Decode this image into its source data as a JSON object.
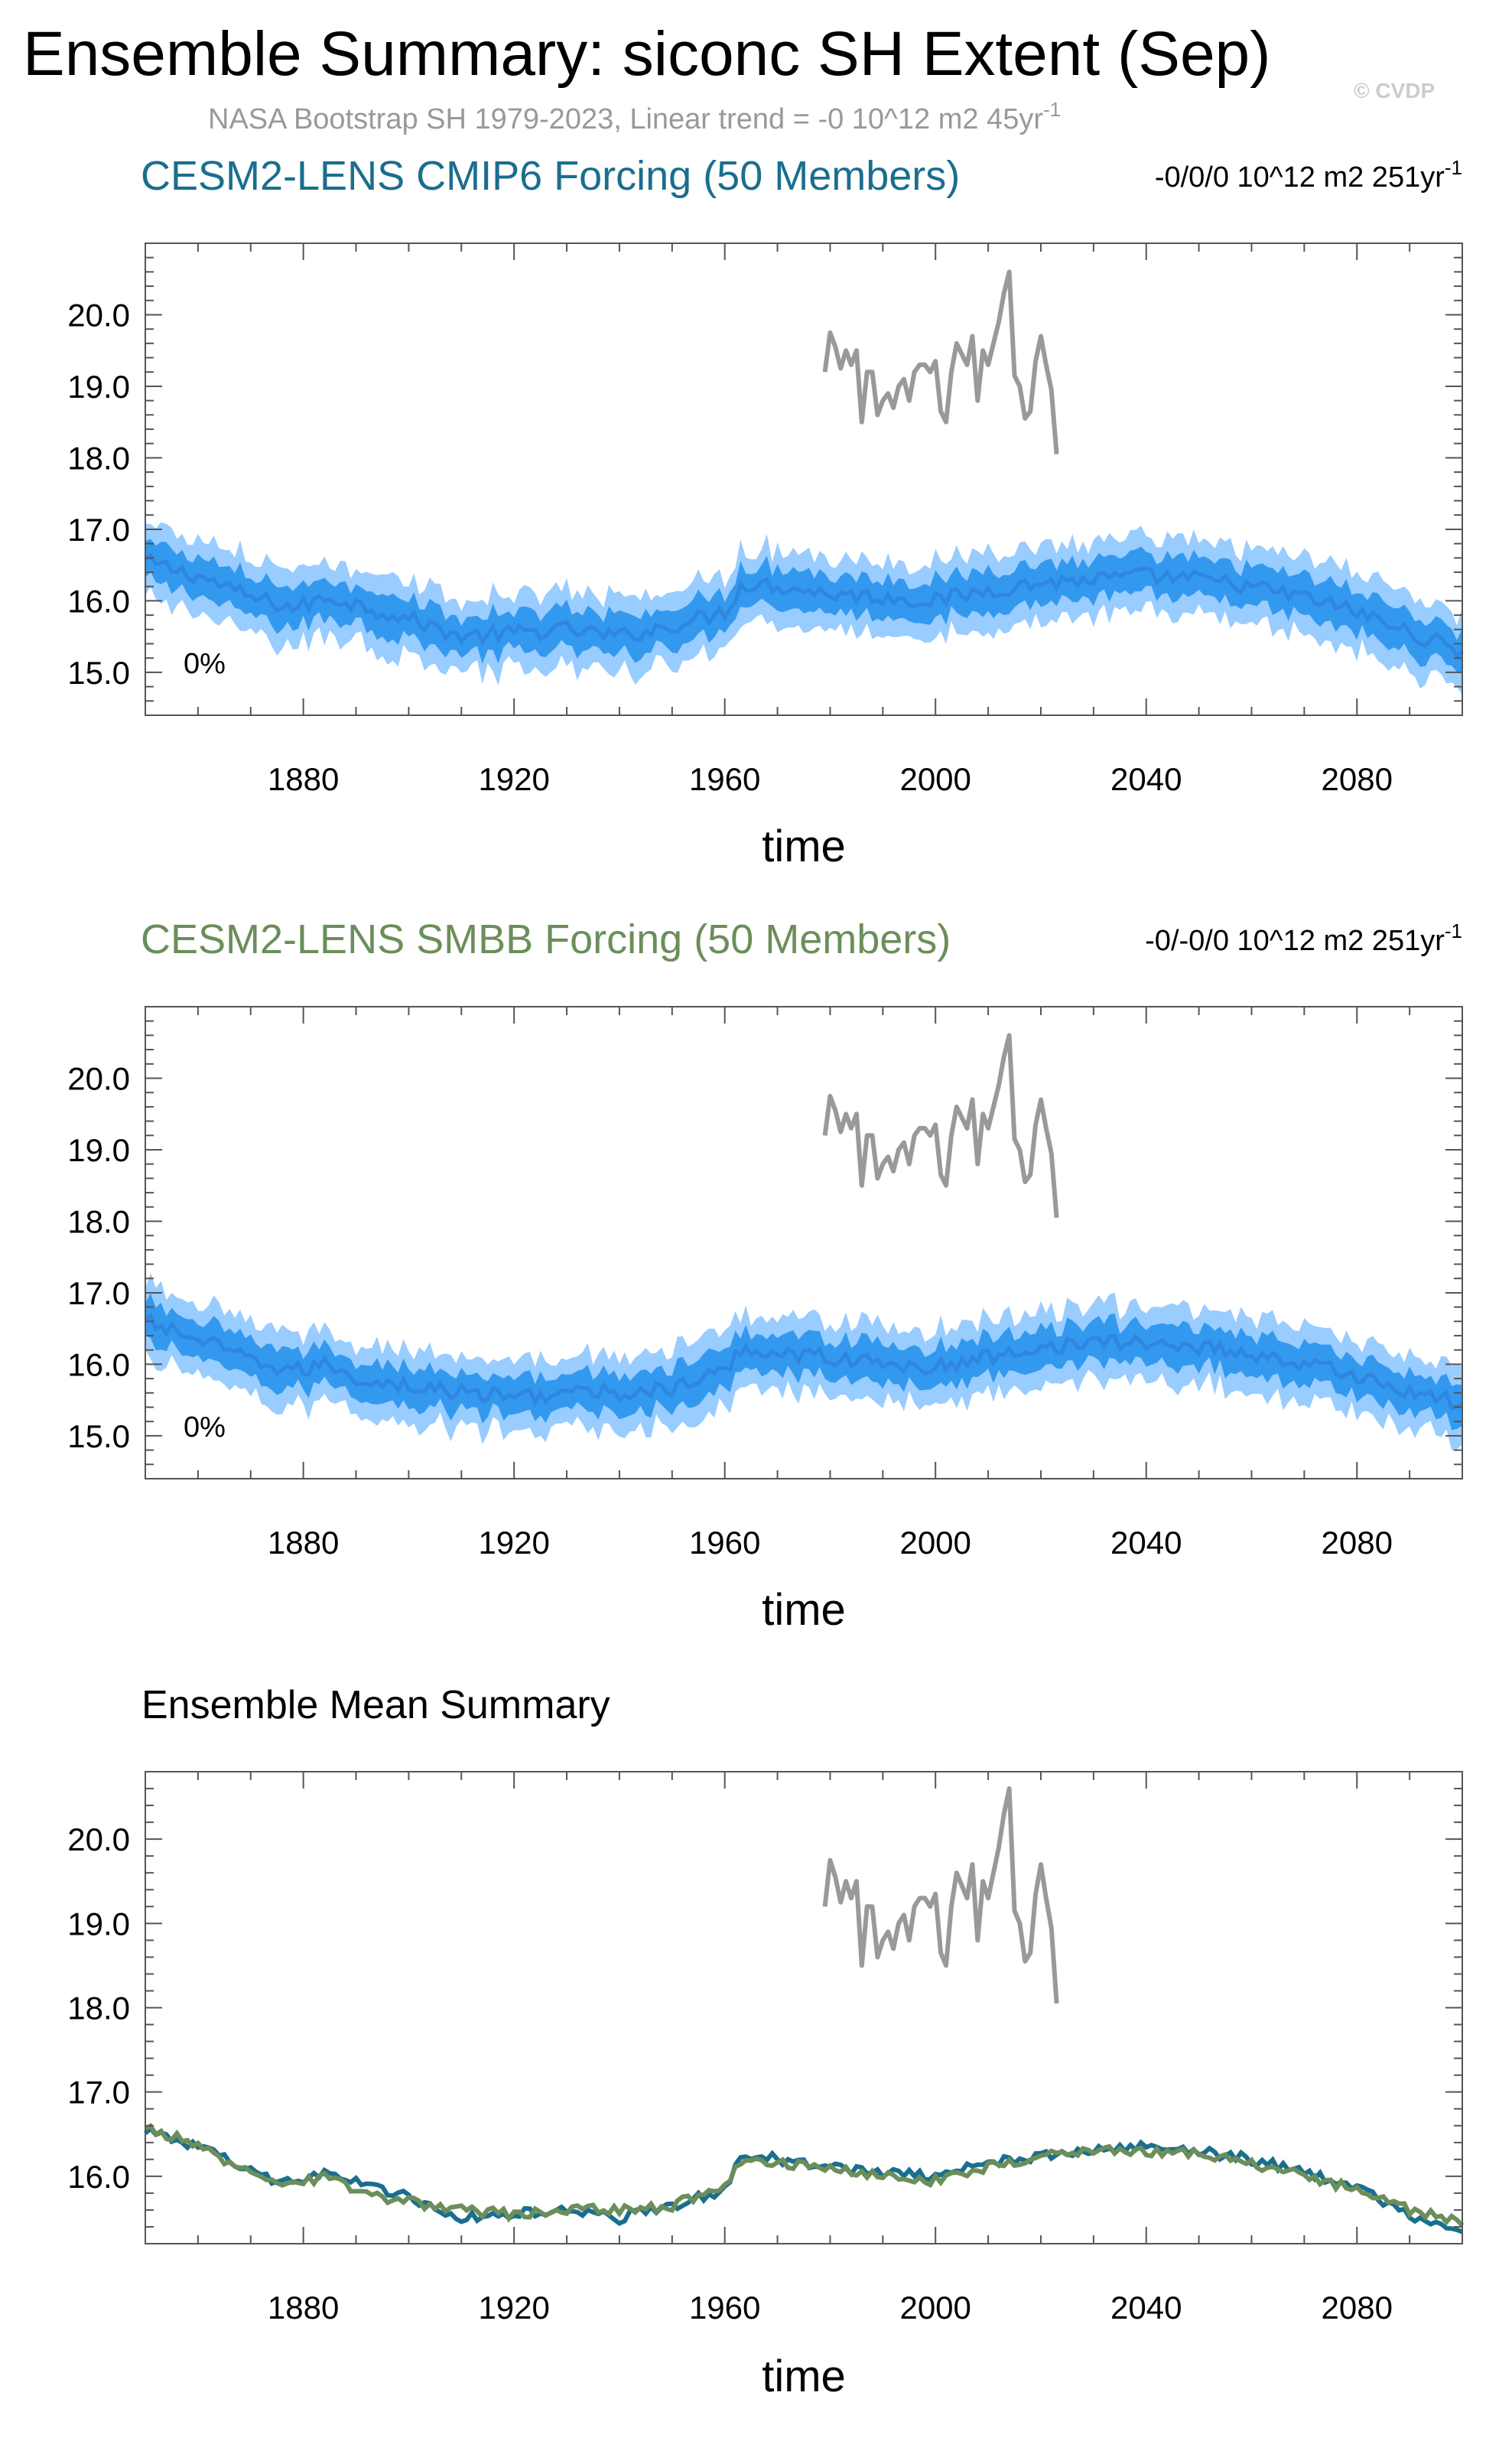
{
  "header": {
    "title": "Ensemble Summary: siconc SH Extent (Sep)",
    "subtitle_main": "NASA Bootstrap SH 1979-2023, Linear trend = -0 10^12 m2 45yr",
    "subtitle_sup": "-1",
    "watermark": "© CVDP"
  },
  "colors": {
    "obs": "#999999",
    "band_outer": "#99ccff",
    "band_inner": "#3399ee",
    "ens_mean": "#2f86e0",
    "cmip6": "#1a6e8e",
    "smbb": "#6b8e5a",
    "axis": "#555555"
  },
  "chart_data": [
    {
      "type": "line",
      "panel_title": "CESM2-LENS CMIP6 Forcing (50 Members)",
      "title_color": "#1a6e8e",
      "trend_text": "-0/0/0 10^12 m2 251yr",
      "trend_sup": "-1",
      "percent_label": "0%",
      "xlabel": "time",
      "xlim": [
        1850,
        2100
      ],
      "ylim": [
        14.4,
        21.0
      ],
      "xticks": [
        1880,
        1920,
        1960,
        2000,
        2040,
        2080
      ],
      "xtick_labels": [
        "1880",
        "1920",
        "1960",
        "2000",
        "2040",
        "2080"
      ],
      "yticks": [
        15.0,
        16.0,
        17.0,
        18.0,
        19.0,
        20.0
      ],
      "ytick_labels": [
        "15.0",
        "16.0",
        "17.0",
        "18.0",
        "19.0",
        "20.0"
      ],
      "mean_knots": [
        [
          1850,
          16.55
        ],
        [
          1860,
          16.35
        ],
        [
          1870,
          16.05
        ],
        [
          1878,
          15.9
        ],
        [
          1885,
          16.05
        ],
        [
          1890,
          15.95
        ],
        [
          1900,
          15.75
        ],
        [
          1910,
          15.5
        ],
        [
          1920,
          15.55
        ],
        [
          1930,
          15.6
        ],
        [
          1940,
          15.5
        ],
        [
          1950,
          15.65
        ],
        [
          1960,
          15.85
        ],
        [
          1963,
          16.2
        ],
        [
          1966,
          16.25
        ],
        [
          1980,
          16.1
        ],
        [
          1990,
          16.05
        ],
        [
          2000,
          16.0
        ],
        [
          2010,
          16.15
        ],
        [
          2020,
          16.25
        ],
        [
          2030,
          16.3
        ],
        [
          2040,
          16.35
        ],
        [
          2050,
          16.3
        ],
        [
          2060,
          16.2
        ],
        [
          2070,
          16.05
        ],
        [
          2080,
          15.85
        ],
        [
          2090,
          15.55
        ],
        [
          2100,
          15.3
        ]
      ],
      "inner_half_width": 0.27,
      "outer_half_width": 0.52,
      "has_band": true,
      "obs_series_name": "NASA Bootstrap SH",
      "obs_x": [
        1979,
        1980,
        1981,
        1982,
        1983,
        1984,
        1985,
        1986,
        1987,
        1988,
        1989,
        1990,
        1991,
        1992,
        1993,
        1994,
        1995,
        1996,
        1997,
        1998,
        1999,
        2000,
        2001,
        2002,
        2003,
        2004,
        2005,
        2006,
        2007,
        2008,
        2009,
        2010,
        2011,
        2012,
        2013,
        2014,
        2015,
        2016,
        2017,
        2018,
        2019,
        2020,
        2021,
        2022,
        2023
      ],
      "obs_y": [
        19.2,
        19.75,
        19.55,
        19.25,
        19.5,
        19.3,
        19.5,
        18.5,
        19.2,
        19.2,
        18.6,
        18.8,
        18.9,
        18.7,
        19.0,
        19.1,
        18.8,
        19.2,
        19.3,
        19.3,
        19.2,
        19.35,
        18.65,
        18.5,
        19.2,
        19.6,
        19.45,
        19.3,
        19.7,
        18.8,
        19.5,
        19.3,
        19.6,
        19.9,
        20.3,
        20.6,
        19.15,
        19.0,
        18.55,
        18.65,
        19.35,
        19.7,
        19.3,
        18.95,
        18.05
      ]
    },
    {
      "type": "line",
      "panel_title": "CESM2-LENS SMBB Forcing (50 Members)",
      "title_color": "#6b8e5a",
      "trend_text": "-0/-0/0 10^12 m2 251yr",
      "trend_sup": "-1",
      "percent_label": "0%",
      "xlabel": "time",
      "xlim": [
        1850,
        2100
      ],
      "ylim": [
        14.4,
        21.0
      ],
      "xticks": [
        1880,
        1920,
        1960,
        2000,
        2040,
        2080
      ],
      "xtick_labels": [
        "1880",
        "1920",
        "1960",
        "2000",
        "2040",
        "2080"
      ],
      "yticks": [
        15.0,
        16.0,
        17.0,
        18.0,
        19.0,
        20.0
      ],
      "ytick_labels": [
        "15.0",
        "16.0",
        "17.0",
        "18.0",
        "19.0",
        "20.0"
      ],
      "mean_knots": [
        [
          1850,
          16.6
        ],
        [
          1860,
          16.35
        ],
        [
          1870,
          16.05
        ],
        [
          1878,
          15.9
        ],
        [
          1885,
          16.0
        ],
        [
          1890,
          15.8
        ],
        [
          1900,
          15.7
        ],
        [
          1910,
          15.6
        ],
        [
          1920,
          15.55
        ],
        [
          1930,
          15.6
        ],
        [
          1940,
          15.6
        ],
        [
          1950,
          15.65
        ],
        [
          1960,
          15.9
        ],
        [
          1963,
          16.2
        ],
        [
          1966,
          16.2
        ],
        [
          1980,
          16.1
        ],
        [
          1990,
          16.0
        ],
        [
          2000,
          15.95
        ],
        [
          2010,
          16.1
        ],
        [
          2020,
          16.25
        ],
        [
          2030,
          16.3
        ],
        [
          2040,
          16.3
        ],
        [
          2050,
          16.25
        ],
        [
          2060,
          16.15
        ],
        [
          2070,
          16.0
        ],
        [
          2080,
          15.85
        ],
        [
          2090,
          15.6
        ],
        [
          2100,
          15.45
        ]
      ],
      "inner_half_width": 0.27,
      "outer_half_width": 0.52,
      "has_band": true,
      "obs_series_name": "NASA Bootstrap SH",
      "obs_x": [
        1979,
        1980,
        1981,
        1982,
        1983,
        1984,
        1985,
        1986,
        1987,
        1988,
        1989,
        1990,
        1991,
        1992,
        1993,
        1994,
        1995,
        1996,
        1997,
        1998,
        1999,
        2000,
        2001,
        2002,
        2003,
        2004,
        2005,
        2006,
        2007,
        2008,
        2009,
        2010,
        2011,
        2012,
        2013,
        2014,
        2015,
        2016,
        2017,
        2018,
        2019,
        2020,
        2021,
        2022,
        2023
      ],
      "obs_y": [
        19.2,
        19.75,
        19.55,
        19.25,
        19.5,
        19.3,
        19.5,
        18.5,
        19.2,
        19.2,
        18.6,
        18.8,
        18.9,
        18.7,
        19.0,
        19.1,
        18.8,
        19.2,
        19.3,
        19.3,
        19.2,
        19.35,
        18.65,
        18.5,
        19.2,
        19.6,
        19.45,
        19.3,
        19.7,
        18.8,
        19.5,
        19.3,
        19.6,
        19.9,
        20.3,
        20.6,
        19.15,
        19.0,
        18.55,
        18.65,
        19.35,
        19.7,
        19.3,
        18.95,
        18.05
      ]
    },
    {
      "type": "line",
      "panel_title": "Ensemble Mean Summary",
      "title_color": "#000000",
      "trend_text": "",
      "trend_sup": "",
      "percent_label": "",
      "xlabel": "time",
      "xlim": [
        1850,
        2100
      ],
      "ylim": [
        15.2,
        20.8
      ],
      "xticks": [
        1880,
        1920,
        1960,
        2000,
        2040,
        2080
      ],
      "xtick_labels": [
        "1880",
        "1920",
        "1960",
        "2000",
        "2040",
        "2080"
      ],
      "yticks": [
        16.0,
        17.0,
        18.0,
        19.0,
        20.0
      ],
      "ytick_labels": [
        "16.0",
        "17.0",
        "18.0",
        "19.0",
        "20.0"
      ],
      "has_band": false,
      "series": [
        {
          "name": "CESM2-LENS CMIP6 Forcing",
          "color": "#1a6e8e",
          "knots": [
            [
              1850,
              16.55
            ],
            [
              1860,
              16.35
            ],
            [
              1870,
              16.05
            ],
            [
              1878,
              15.9
            ],
            [
              1885,
              16.05
            ],
            [
              1890,
              15.95
            ],
            [
              1900,
              15.75
            ],
            [
              1910,
              15.5
            ],
            [
              1920,
              15.55
            ],
            [
              1930,
              15.6
            ],
            [
              1940,
              15.5
            ],
            [
              1950,
              15.65
            ],
            [
              1960,
              15.85
            ],
            [
              1963,
              16.2
            ],
            [
              1966,
              16.25
            ],
            [
              1980,
              16.1
            ],
            [
              1990,
              16.05
            ],
            [
              2000,
              16.0
            ],
            [
              2010,
              16.15
            ],
            [
              2020,
              16.25
            ],
            [
              2030,
              16.3
            ],
            [
              2040,
              16.35
            ],
            [
              2050,
              16.3
            ],
            [
              2060,
              16.2
            ],
            [
              2070,
              16.05
            ],
            [
              2080,
              15.85
            ],
            [
              2090,
              15.55
            ],
            [
              2100,
              15.3
            ]
          ]
        },
        {
          "name": "CESM2-LENS SMBB Forcing",
          "color": "#6b8e5a",
          "knots": [
            [
              1850,
              16.6
            ],
            [
              1860,
              16.35
            ],
            [
              1870,
              16.05
            ],
            [
              1878,
              15.9
            ],
            [
              1885,
              16.0
            ],
            [
              1890,
              15.8
            ],
            [
              1900,
              15.7
            ],
            [
              1910,
              15.6
            ],
            [
              1920,
              15.55
            ],
            [
              1930,
              15.6
            ],
            [
              1940,
              15.6
            ],
            [
              1950,
              15.65
            ],
            [
              1960,
              15.9
            ],
            [
              1963,
              16.2
            ],
            [
              1966,
              16.2
            ],
            [
              1980,
              16.1
            ],
            [
              1990,
              16.0
            ],
            [
              2000,
              15.95
            ],
            [
              2010,
              16.1
            ],
            [
              2020,
              16.25
            ],
            [
              2030,
              16.3
            ],
            [
              2040,
              16.3
            ],
            [
              2050,
              16.25
            ],
            [
              2060,
              16.15
            ],
            [
              2070,
              16.0
            ],
            [
              2080,
              15.85
            ],
            [
              2090,
              15.6
            ],
            [
              2100,
              15.45
            ]
          ]
        }
      ],
      "obs_series_name": "NASA Bootstrap SH",
      "obs_x": [
        1979,
        1980,
        1981,
        1982,
        1983,
        1984,
        1985,
        1986,
        1987,
        1988,
        1989,
        1990,
        1991,
        1992,
        1993,
        1994,
        1995,
        1996,
        1997,
        1998,
        1999,
        2000,
        2001,
        2002,
        2003,
        2004,
        2005,
        2006,
        2007,
        2008,
        2009,
        2010,
        2011,
        2012,
        2013,
        2014,
        2015,
        2016,
        2017,
        2018,
        2019,
        2020,
        2021,
        2022,
        2023
      ],
      "obs_y": [
        19.2,
        19.75,
        19.55,
        19.25,
        19.5,
        19.3,
        19.5,
        18.5,
        19.2,
        19.2,
        18.6,
        18.8,
        18.9,
        18.7,
        19.0,
        19.1,
        18.8,
        19.2,
        19.3,
        19.3,
        19.2,
        19.35,
        18.65,
        18.5,
        19.2,
        19.6,
        19.45,
        19.3,
        19.7,
        18.8,
        19.5,
        19.3,
        19.6,
        19.9,
        20.3,
        20.6,
        19.15,
        19.0,
        18.55,
        18.65,
        19.35,
        19.7,
        19.3,
        18.95,
        18.05
      ]
    }
  ]
}
